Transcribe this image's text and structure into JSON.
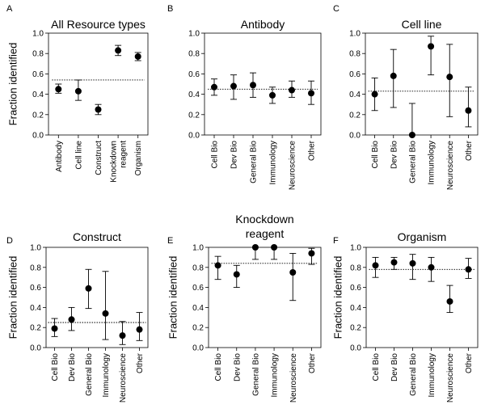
{
  "chart_data": [
    {
      "panel": "A",
      "type": "scatter",
      "title": [
        "All Resource types"
      ],
      "ylabel": "Fraction identified",
      "ylim": [
        0,
        1
      ],
      "yticks": [
        "0.0",
        "0.2",
        "0.4",
        "0.6",
        "0.8",
        "1.0"
      ],
      "categories": [
        [
          "Antibody"
        ],
        [
          "Cell line"
        ],
        [
          "Construct"
        ],
        [
          "Knockdown",
          "reagent"
        ],
        [
          "Organism"
        ]
      ],
      "values": [
        0.45,
        0.43,
        0.25,
        0.83,
        0.77
      ],
      "err_low": [
        0.41,
        0.34,
        0.2,
        0.78,
        0.73
      ],
      "err_high": [
        0.5,
        0.54,
        0.3,
        0.88,
        0.81
      ],
      "reference": 0.54
    },
    {
      "panel": "B",
      "type": "scatter",
      "title": [
        "Antibody"
      ],
      "ylabel": "",
      "ylim": [
        0,
        1
      ],
      "yticks": [
        "0.0",
        "0.2",
        "0.4",
        "0.6",
        "0.8",
        "1.0"
      ],
      "categories": [
        [
          "Cell Bio"
        ],
        [
          "Dev Bio"
        ],
        [
          "General Bio"
        ],
        [
          "Immunology"
        ],
        [
          "Neuroscience"
        ],
        [
          "Other"
        ]
      ],
      "values": [
        0.47,
        0.48,
        0.49,
        0.39,
        0.44,
        0.41
      ],
      "err_low": [
        0.39,
        0.35,
        0.37,
        0.31,
        0.37,
        0.3
      ],
      "err_high": [
        0.55,
        0.59,
        0.61,
        0.47,
        0.53,
        0.53
      ],
      "reference": 0.45
    },
    {
      "panel": "C",
      "type": "scatter",
      "title": [
        "Cell line"
      ],
      "ylabel": "",
      "ylim": [
        0,
        1
      ],
      "yticks": [
        "0.0",
        "0.2",
        "0.4",
        "0.6",
        "0.8",
        "1.0"
      ],
      "categories": [
        [
          "Cell Bio"
        ],
        [
          "Dev Bio"
        ],
        [
          "General Bio"
        ],
        [
          "Immunology"
        ],
        [
          "Neuroscience"
        ],
        [
          "Other"
        ]
      ],
      "values": [
        0.4,
        0.58,
        0.0,
        0.87,
        0.57,
        0.24
      ],
      "err_low": [
        0.24,
        0.27,
        0.0,
        0.59,
        0.18,
        0.08
      ],
      "err_high": [
        0.56,
        0.84,
        0.31,
        0.97,
        0.89,
        0.47
      ],
      "reference": 0.43
    },
    {
      "panel": "D",
      "type": "scatter",
      "title": [
        "Construct"
      ],
      "ylabel": "Fraction identified",
      "ylim": [
        0,
        1
      ],
      "yticks": [
        "0.0",
        "0.2",
        "0.4",
        "0.6",
        "0.8",
        "1.0"
      ],
      "categories": [
        [
          "Cell Bio"
        ],
        [
          "Dev Bio"
        ],
        [
          "General Bio"
        ],
        [
          "Immunology"
        ],
        [
          "Neuroscience"
        ],
        [
          "Other"
        ]
      ],
      "values": [
        0.19,
        0.28,
        0.59,
        0.34,
        0.12,
        0.18
      ],
      "err_low": [
        0.11,
        0.17,
        0.39,
        0.08,
        0.03,
        0.07
      ],
      "err_high": [
        0.29,
        0.4,
        0.78,
        0.76,
        0.26,
        0.35
      ],
      "reference": 0.25
    },
    {
      "panel": "E",
      "type": "scatter",
      "title": [
        "Knockdown",
        "reagent"
      ],
      "ylabel": "Fraction identified",
      "ylim": [
        0,
        1
      ],
      "yticks": [
        "0.0",
        "0.2",
        "0.4",
        "0.6",
        "0.8",
        "1.0"
      ],
      "categories": [
        [
          "Cell Bio"
        ],
        [
          "Dev Bio"
        ],
        [
          "General Bio"
        ],
        [
          "Immunology"
        ],
        [
          "Neuroscience"
        ],
        [
          "Other"
        ]
      ],
      "values": [
        0.82,
        0.73,
        1.0,
        1.0,
        0.75,
        0.94
      ],
      "err_low": [
        0.68,
        0.6,
        0.88,
        0.88,
        0.47,
        0.83
      ],
      "err_high": [
        0.91,
        0.82,
        1.0,
        1.0,
        0.94,
        0.99
      ],
      "reference": 0.84
    },
    {
      "panel": "F",
      "type": "scatter",
      "title": [
        "Organism"
      ],
      "ylabel": "Fraction identified",
      "ylim": [
        0,
        1
      ],
      "yticks": [
        "0.0",
        "0.2",
        "0.4",
        "0.6",
        "0.8",
        "1.0"
      ],
      "categories": [
        [
          "Cell Bio"
        ],
        [
          "Dev Bio"
        ],
        [
          "General Bio"
        ],
        [
          "Immunology"
        ],
        [
          "Neuroscience"
        ],
        [
          "Other"
        ]
      ],
      "values": [
        0.82,
        0.85,
        0.84,
        0.8,
        0.46,
        0.78
      ],
      "err_low": [
        0.7,
        0.78,
        0.68,
        0.66,
        0.35,
        0.69
      ],
      "err_high": [
        0.9,
        0.9,
        0.93,
        0.9,
        0.62,
        0.89
      ],
      "reference": 0.78
    }
  ]
}
